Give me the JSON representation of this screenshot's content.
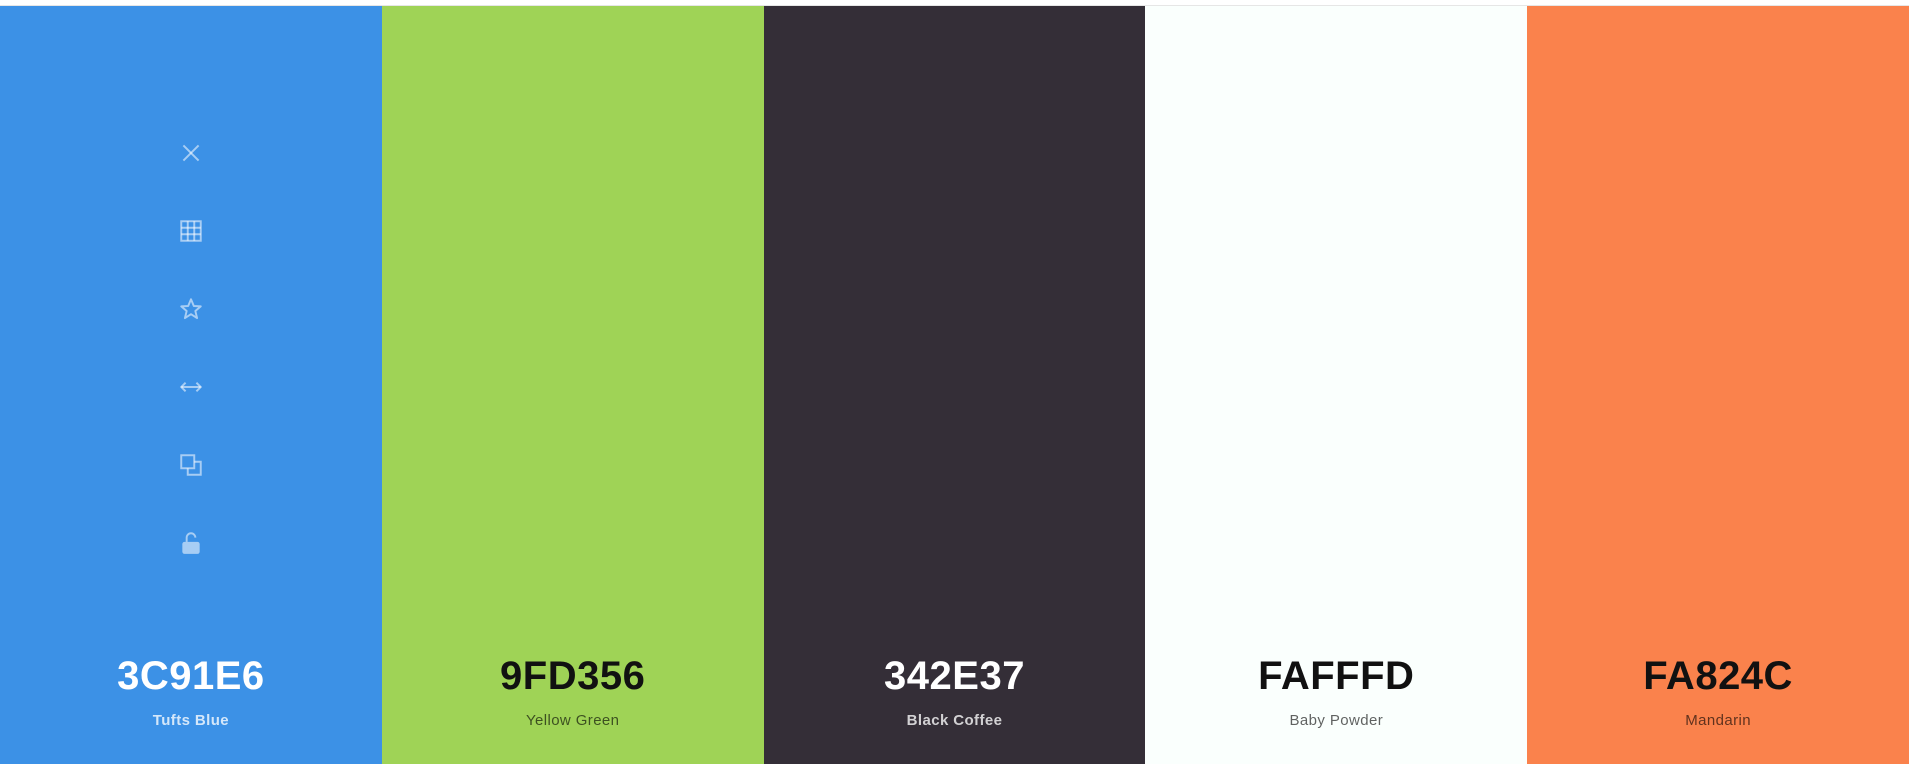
{
  "palette": {
    "colors": [
      {
        "hex": "3C91E6",
        "name": "Tufts Blue",
        "color": "#3C91E6",
        "text_theme": "light"
      },
      {
        "hex": "9FD356",
        "name": "Yellow Green",
        "color": "#9FD356",
        "text_theme": "dark"
      },
      {
        "hex": "342E37",
        "name": "Black Coffee",
        "color": "#342E37",
        "text_theme": "light"
      },
      {
        "hex": "FAFFFD",
        "name": "Baby Powder",
        "color": "#FAFFFD",
        "text_theme": "dark"
      },
      {
        "hex": "FA824C",
        "name": "Mandarin",
        "color": "#FA824C",
        "text_theme": "dark"
      }
    ]
  },
  "toolbar": {
    "icons": [
      "close-icon",
      "grid-icon",
      "star-icon",
      "drag-horizontal-icon",
      "copy-icon",
      "unlock-icon"
    ]
  }
}
